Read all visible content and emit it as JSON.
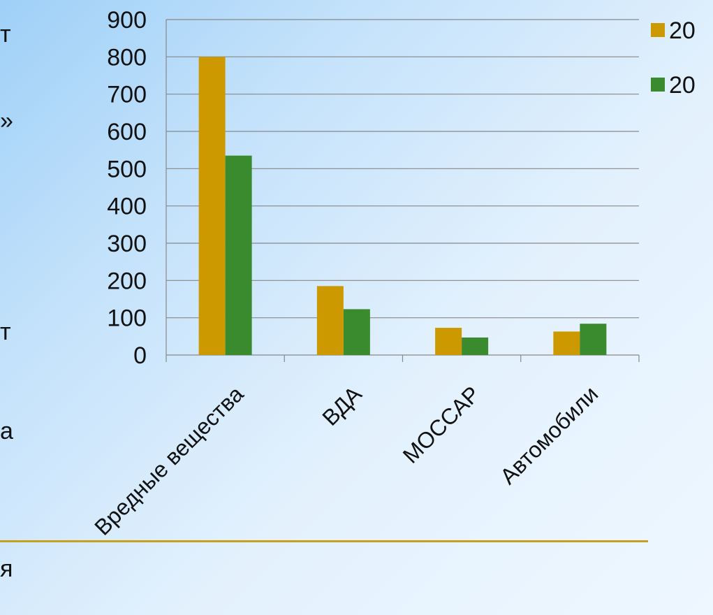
{
  "background_text": [
    "т",
    "»",
    "т",
    "а",
    "я"
  ],
  "chart_data": {
    "type": "bar",
    "categories": [
      "Вредные вещества",
      "ВДА",
      "МОССАР",
      "Автомобили"
    ],
    "series": [
      {
        "name": "20",
        "color": "#cc9a00",
        "values": [
          800,
          185,
          73,
          63
        ]
      },
      {
        "name": "20",
        "color": "#3a8a2e",
        "values": [
          535,
          123,
          47,
          84
        ]
      }
    ],
    "y_ticks": [
      "900",
      "800",
      "700",
      "600",
      "500",
      "400",
      "300",
      "200",
      "100",
      "0"
    ],
    "ylim": [
      0,
      900
    ],
    "grid": true,
    "legend": "right"
  }
}
